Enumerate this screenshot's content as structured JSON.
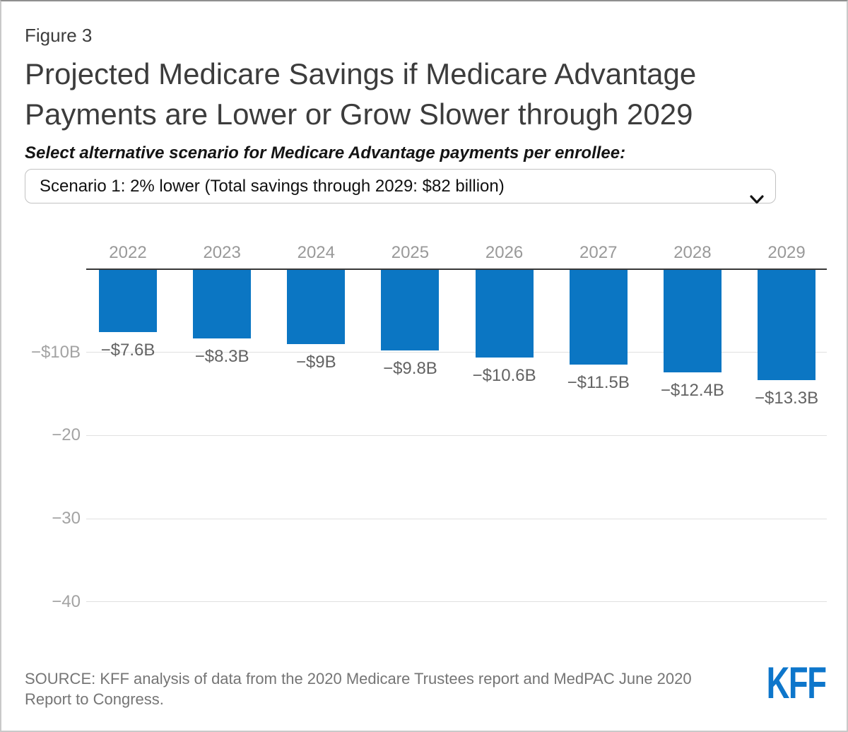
{
  "figure_label": "Figure 3",
  "title": "Projected Medicare Savings if Medicare Advantage Payments are Lower or Grow Slower through 2029",
  "scenario": {
    "label": "Select alternative scenario for Medicare Advantage payments per enrollee:",
    "selected": "Scenario 1: 2% lower (Total savings through 2029: $82 billion)"
  },
  "icons": {
    "select_chevron": "chevron-down"
  },
  "chart_data": {
    "type": "bar",
    "categories": [
      "2022",
      "2023",
      "2024",
      "2025",
      "2026",
      "2027",
      "2028",
      "2029"
    ],
    "values": [
      -7.6,
      -8.3,
      -9,
      -9.8,
      -10.6,
      -11.5,
      -12.4,
      -13.3
    ],
    "data_labels": [
      "−$7.6B",
      "−$8.3B",
      "−$9B",
      "−$9.8B",
      "−$10.6B",
      "−$11.5B",
      "−$12.4B",
      "−$13.3B"
    ],
    "y_ticks": [
      {
        "value": -10,
        "label": "−$10B"
      },
      {
        "value": -20,
        "label": "−20"
      },
      {
        "value": -30,
        "label": "−30"
      },
      {
        "value": -40,
        "label": "−40"
      }
    ],
    "ylim": [
      -44,
      0
    ],
    "grid": true,
    "legend": "none",
    "bar_color": "#0b76c3",
    "baseline_color": "#383838",
    "gridline_color": "#e0e0e0"
  },
  "source": {
    "text": "SOURCE: KFF analysis of data from the 2020 Medicare Trustees report and MedPAC June 2020 Report to Congress."
  },
  "logo": {
    "text": "KFF",
    "color": "#0d76cb"
  }
}
